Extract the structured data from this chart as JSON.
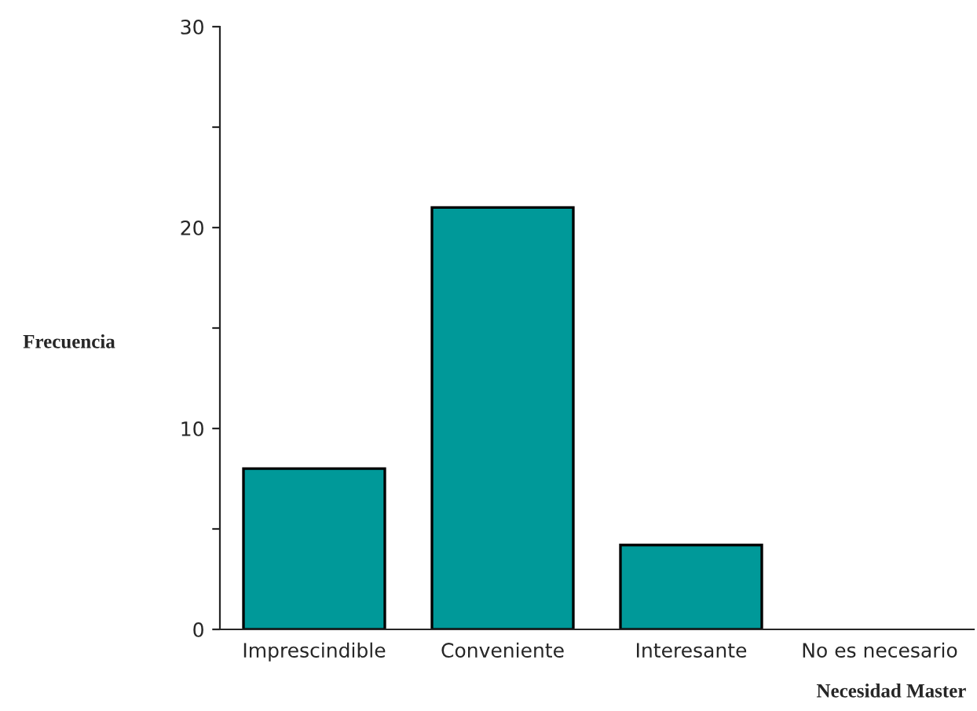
{
  "chart_data": {
    "type": "bar",
    "xlabel": "Necesidad Master",
    "ylabel": "Frecuencia",
    "categories": [
      "Imprescindible",
      "Conveniente",
      "Interesante",
      "No es necesario"
    ],
    "values": [
      8,
      21,
      4.2,
      0
    ],
    "color": "#009999",
    "ylim": [
      0,
      30
    ],
    "yticks": [
      0,
      {
        "value": 5,
        "label": null
      },
      10,
      {
        "value": 15,
        "label": null
      },
      20,
      {
        "value": 25,
        "label": null
      },
      30
    ],
    "grid": false,
    "legend": false
  }
}
